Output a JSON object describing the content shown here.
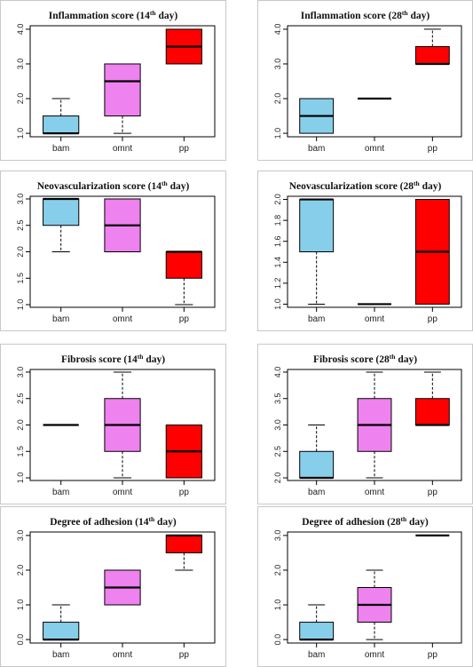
{
  "chart_data": [
    {
      "type": "box",
      "title": "Inflammation score",
      "title_day": "14",
      "title_sup": "th",
      "title_suffix": "day",
      "categories": [
        "bam",
        "omnt",
        "pp"
      ],
      "yticks": [
        "1.0",
        "2.0",
        "3.0",
        "4.0"
      ],
      "ytick_values": [
        1,
        2,
        3,
        4
      ],
      "ylim": [
        0.9,
        4.1
      ],
      "boxes": [
        {
          "min": 1,
          "q1": 1,
          "median": 1,
          "q3": 1.5,
          "max": 2,
          "color": "#87CEEB"
        },
        {
          "min": 1,
          "q1": 1.5,
          "median": 2.5,
          "q3": 3,
          "max": 3,
          "color": "#EE82EE"
        },
        {
          "min": 3,
          "q1": 3,
          "median": 3.5,
          "q3": 4,
          "max": 4,
          "color": "#FF0000"
        }
      ]
    },
    {
      "type": "box",
      "title": "Inflammation score",
      "title_day": "28",
      "title_sup": "th",
      "title_suffix": "day",
      "categories": [
        "bam",
        "omnt",
        "pp"
      ],
      "yticks": [
        "1.0",
        "2.0",
        "3.0",
        "4.0"
      ],
      "ytick_values": [
        1,
        2,
        3,
        4
      ],
      "ylim": [
        0.9,
        4.1
      ],
      "boxes": [
        {
          "min": 1,
          "q1": 1,
          "median": 1.5,
          "q3": 2,
          "max": 2,
          "color": "#87CEEB"
        },
        {
          "min": 2,
          "q1": 2,
          "median": 2,
          "q3": 2,
          "max": 2,
          "color": "#EE82EE"
        },
        {
          "min": 3,
          "q1": 3,
          "median": 3,
          "q3": 3.5,
          "max": 4,
          "color": "#FF0000"
        }
      ]
    },
    {
      "type": "box",
      "title": "Neovascularization score",
      "title_day": "14",
      "title_sup": "th",
      "title_suffix": "day",
      "categories": [
        "bam",
        "omnt",
        "pp"
      ],
      "yticks": [
        "1.0",
        "1.5",
        "2.0",
        "2.5",
        "3.0"
      ],
      "ytick_values": [
        1,
        1.5,
        2,
        2.5,
        3
      ],
      "ylim": [
        0.95,
        3.05
      ],
      "boxes": [
        {
          "min": 2,
          "q1": 2.5,
          "median": 3,
          "q3": 3,
          "max": 3,
          "color": "#87CEEB"
        },
        {
          "min": 2,
          "q1": 2,
          "median": 2.5,
          "q3": 3,
          "max": 3,
          "color": "#EE82EE"
        },
        {
          "min": 1,
          "q1": 1.5,
          "median": 2,
          "q3": 2,
          "max": 2,
          "color": "#FF0000"
        }
      ]
    },
    {
      "type": "box",
      "title": "Neovascularization score",
      "title_day": "28",
      "title_sup": "th",
      "title_suffix": "day",
      "categories": [
        "bam",
        "omnt",
        "pp"
      ],
      "yticks": [
        "1.0",
        "1.2",
        "1.4",
        "1.6",
        "1.8",
        "2.0"
      ],
      "ytick_values": [
        1,
        1.2,
        1.4,
        1.6,
        1.8,
        2
      ],
      "ylim": [
        0.97,
        2.03
      ],
      "boxes": [
        {
          "min": 1,
          "q1": 1.5,
          "median": 2,
          "q3": 2,
          "max": 2,
          "color": "#87CEEB"
        },
        {
          "min": 1,
          "q1": 1,
          "median": 1,
          "q3": 1,
          "max": 1,
          "color": "#EE82EE"
        },
        {
          "min": 1,
          "q1": 1,
          "median": 1.5,
          "q3": 2,
          "max": 2,
          "color": "#FF0000"
        }
      ]
    },
    {
      "type": "box",
      "title": "Fibrosis score",
      "title_day": "14",
      "title_sup": "th",
      "title_suffix": "day",
      "categories": [
        "bam",
        "omnt",
        "pp"
      ],
      "yticks": [
        "1.0",
        "1.5",
        "2.0",
        "2.5",
        "3.0"
      ],
      "ytick_values": [
        1,
        1.5,
        2,
        2.5,
        3
      ],
      "ylim": [
        0.95,
        3.05
      ],
      "boxes": [
        {
          "min": 2,
          "q1": 2,
          "median": 2,
          "q3": 2,
          "max": 2,
          "color": "#87CEEB"
        },
        {
          "min": 1,
          "q1": 1.5,
          "median": 2,
          "q3": 2.5,
          "max": 3,
          "color": "#EE82EE"
        },
        {
          "min": 1,
          "q1": 1,
          "median": 1.5,
          "q3": 2,
          "max": 2,
          "color": "#FF0000"
        }
      ]
    },
    {
      "type": "box",
      "title": "Fibrosis score",
      "title_day": "28",
      "title_sup": "th",
      "title_suffix": "day",
      "categories": [
        "bam",
        "omnt",
        "pp"
      ],
      "yticks": [
        "2.0",
        "2.5",
        "3.0",
        "3.5",
        "4.0"
      ],
      "ytick_values": [
        2,
        2.5,
        3,
        3.5,
        4
      ],
      "ylim": [
        1.95,
        4.05
      ],
      "boxes": [
        {
          "min": 2,
          "q1": 2,
          "median": 2,
          "q3": 2.5,
          "max": 3,
          "color": "#87CEEB"
        },
        {
          "min": 2,
          "q1": 2.5,
          "median": 3,
          "q3": 3.5,
          "max": 4,
          "color": "#EE82EE"
        },
        {
          "min": 3,
          "q1": 3,
          "median": 3,
          "q3": 3.5,
          "max": 4,
          "color": "#FF0000"
        }
      ]
    },
    {
      "type": "box",
      "title": "Degree of adhesion",
      "title_day": "14",
      "title_sup": "th",
      "title_suffix": "day",
      "categories": [
        "bam",
        "omnt",
        "pp"
      ],
      "yticks": [
        "0.0",
        "1.0",
        "2.0",
        "3.0"
      ],
      "ytick_values": [
        0,
        1,
        2,
        3
      ],
      "ylim": [
        -0.1,
        3.1
      ],
      "boxes": [
        {
          "min": 0,
          "q1": 0,
          "median": 0,
          "q3": 0.5,
          "max": 1,
          "color": "#87CEEB"
        },
        {
          "min": 1,
          "q1": 1,
          "median": 1.5,
          "q3": 2,
          "max": 2,
          "color": "#EE82EE"
        },
        {
          "min": 2,
          "q1": 2.5,
          "median": 3,
          "q3": 3,
          "max": 3,
          "color": "#FF0000"
        }
      ]
    },
    {
      "type": "box",
      "title": "Degree of adhesion",
      "title_day": "28",
      "title_sup": "th",
      "title_suffix": "day",
      "categories": [
        "bam",
        "omnt",
        "pp"
      ],
      "yticks": [
        "0.0",
        "1.0",
        "2.0",
        "3.0"
      ],
      "ytick_values": [
        0,
        1,
        2,
        3
      ],
      "ylim": [
        -0.1,
        3.1
      ],
      "boxes": [
        {
          "min": 0,
          "q1": 0,
          "median": 0,
          "q3": 0.5,
          "max": 1,
          "color": "#87CEEB"
        },
        {
          "min": 0,
          "q1": 0.5,
          "median": 1,
          "q3": 1.5,
          "max": 2,
          "color": "#EE82EE"
        },
        {
          "min": 3,
          "q1": 3,
          "median": 3,
          "q3": 3,
          "max": 3,
          "color": "#FF0000"
        }
      ]
    }
  ]
}
